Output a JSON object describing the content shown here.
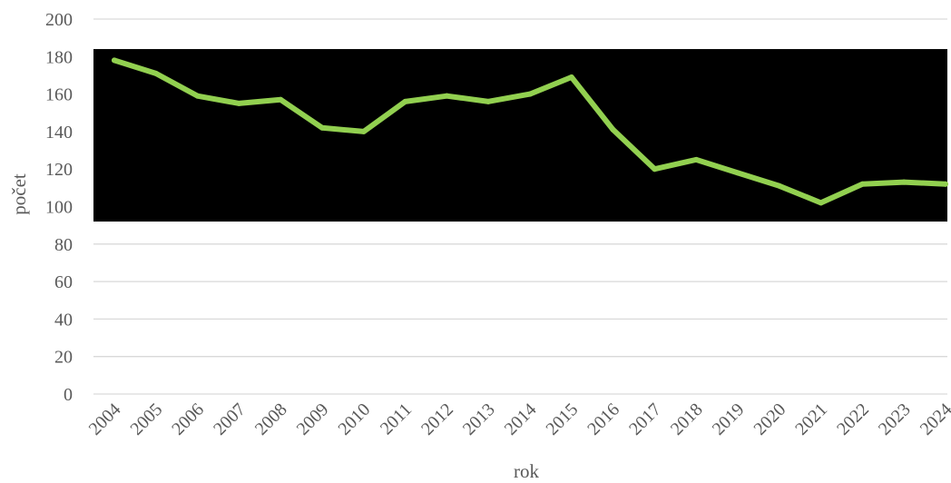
{
  "chart_data": {
    "type": "line",
    "xlabel": "rok",
    "ylabel": "počet",
    "ylim": [
      0,
      200
    ],
    "yticks": [
      "0",
      "20",
      "40",
      "60",
      "80",
      "100",
      "120",
      "140",
      "160",
      "180",
      "200"
    ],
    "grid": true,
    "categories": [
      "2004",
      "2005",
      "2006",
      "2007",
      "2008",
      "2009",
      "2010",
      "2011",
      "2012",
      "2013",
      "2014",
      "2015",
      "2016",
      "2017",
      "2018",
      "2019",
      "2020",
      "2021",
      "2022",
      "2023",
      "2024"
    ],
    "series": [
      {
        "color": "#92d050",
        "values": [
          178,
          171,
          159,
          155,
          157,
          142,
          140,
          156,
          159,
          156,
          160,
          169,
          141,
          120,
          125,
          118,
          111,
          102,
          112,
          113,
          112
        ]
      }
    ],
    "redaction_box": {
      "color": "#000000",
      "y_from": 92,
      "y_to": 184
    }
  }
}
